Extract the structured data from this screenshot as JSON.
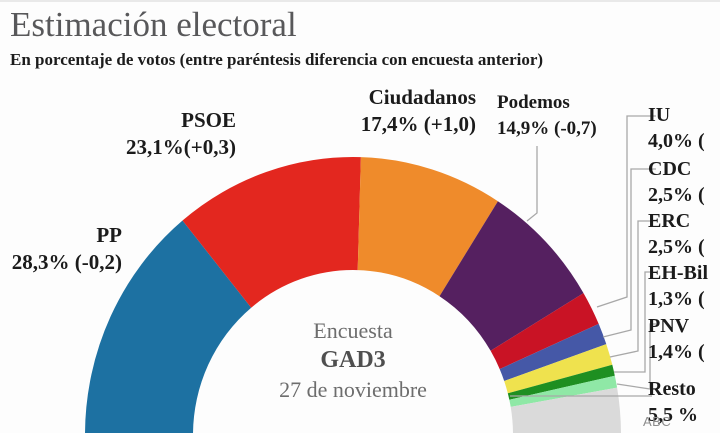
{
  "header": {
    "title": "Estimación electoral",
    "subtitle": "En porcentaje de votos (entre paréntesis diferencia con encuesta anterior)"
  },
  "center_note": {
    "line1": "Encuesta",
    "line2": "GAD3",
    "line3": "27 de noviembre"
  },
  "watermark": "ABC",
  "chart_data": {
    "type": "pie",
    "variant": "semicircle-donut",
    "title": "Estimación electoral",
    "subtitle": "En porcentaje de votos (entre paréntesis diferencia con encuesta anterior)",
    "note": "Encuesta GAD3, 27 de noviembre",
    "unit": "percent of votes",
    "legend_position": "around-arc",
    "series": [
      {
        "name": "PP",
        "value": 28.3,
        "diff": "-0,2",
        "label_value": "28,3% (-0,2)",
        "color": "#1d71a2"
      },
      {
        "name": "PSOE",
        "value": 23.1,
        "diff": "+0,3",
        "label_value": "23,1%(+0,3)",
        "color": "#e3271f"
      },
      {
        "name": "Ciudadanos",
        "value": 17.4,
        "diff": "+1,0",
        "label_value": "17,4% (+1,0)",
        "color": "#ef8b2b"
      },
      {
        "name": "Podemos",
        "value": 14.9,
        "diff": "-0,7",
        "label_value": "14,9% (-0,7)",
        "color": "#552060"
      },
      {
        "name": "IU",
        "value": 4.0,
        "label_value": "4,0% (",
        "color": "#c91325"
      },
      {
        "name": "CDC",
        "value": 2.5,
        "label_value": "2,5% (",
        "color": "#4558a7"
      },
      {
        "name": "ERC",
        "value": 2.5,
        "label_value": "2,5% (",
        "color": "#efe24e"
      },
      {
        "name": "EH-Bil",
        "value": 1.3,
        "label_value": "1,3% (",
        "color": "#1e8f21"
      },
      {
        "name": "PNV",
        "value": 1.4,
        "label_value": "1,4% (",
        "color": "#8fe8a6"
      },
      {
        "name": "Resto",
        "value": 5.5,
        "label_value": "5,5 %",
        "color": "#dadada"
      }
    ]
  }
}
